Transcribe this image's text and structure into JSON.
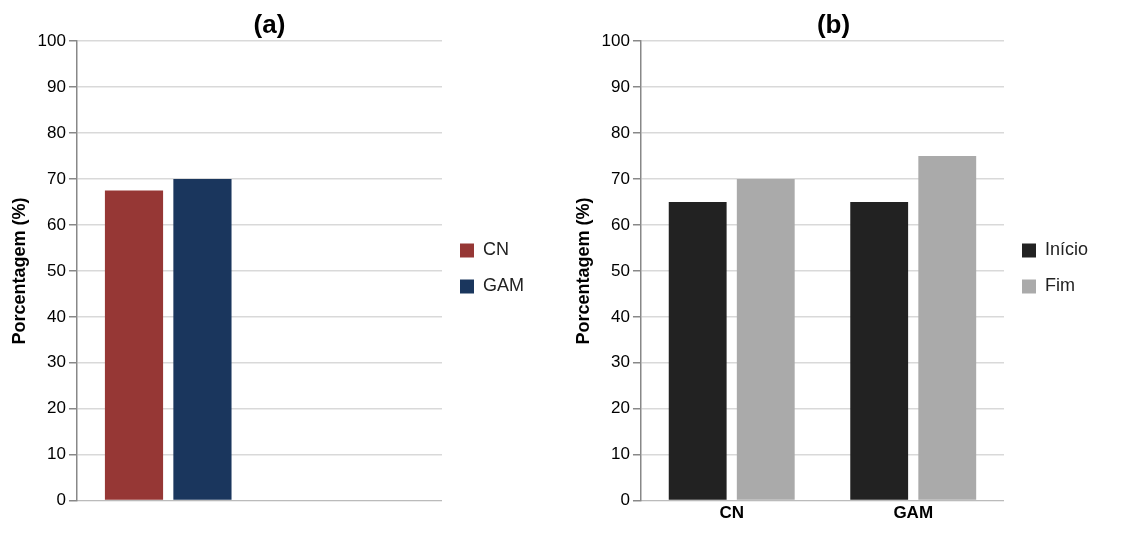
{
  "chart_data": [
    {
      "type": "bar",
      "title": "(a)",
      "ylabel": "Porcentagem (%)",
      "categories": [
        null,
        null
      ],
      "series": [
        {
          "name": "CN",
          "color": "#963735",
          "values": [
            67.5,
            null
          ]
        },
        {
          "name": "GAM",
          "color": "#1a365d",
          "values": [
            70,
            null
          ]
        }
      ],
      "ylim": [
        0,
        100
      ],
      "yticks": [
        0,
        10,
        20,
        30,
        40,
        50,
        60,
        70,
        80,
        90,
        100
      ],
      "grid": "y",
      "legend": "right"
    },
    {
      "type": "bar",
      "title": "(b)",
      "ylabel": "Porcentagem (%)",
      "categories": [
        "CN",
        "GAM"
      ],
      "series": [
        {
          "name": "Início",
          "color": "#222222",
          "values": [
            65,
            65
          ]
        },
        {
          "name": "Fim",
          "color": "#aaaaaa",
          "values": [
            70,
            75
          ]
        }
      ],
      "ylim": [
        0,
        100
      ],
      "yticks": [
        0,
        10,
        20,
        30,
        40,
        50,
        60,
        70,
        80,
        90,
        100
      ],
      "grid": "y",
      "legend": "right"
    }
  ]
}
